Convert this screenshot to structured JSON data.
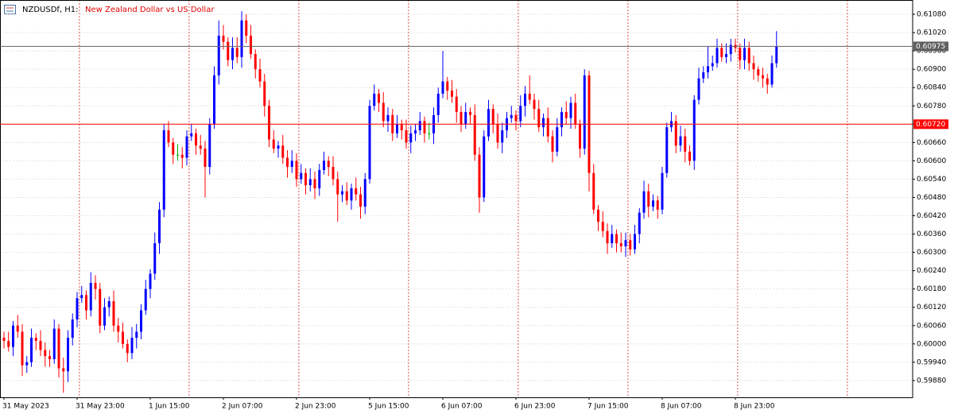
{
  "chart_data": {
    "type": "candlestick",
    "symbol": "NZDUSDf, H1:",
    "description": "New Zealand Dollar vs US Dollar",
    "up_color": "#0000ff",
    "down_color": "#ff0000",
    "doji_color": "#00b000",
    "grid": true,
    "ylim": [
      0.59825,
      0.61127
    ],
    "yticks": [
      {
        "value": 0.5988,
        "label": "0.59880"
      },
      {
        "value": 0.5994,
        "label": "0.59940"
      },
      {
        "value": 0.6,
        "label": "0.60000"
      },
      {
        "value": 0.6006,
        "label": "0.60060"
      },
      {
        "value": 0.6012,
        "label": "0.60120"
      },
      {
        "value": 0.6018,
        "label": "0.60180"
      },
      {
        "value": 0.6024,
        "label": "0.60240"
      },
      {
        "value": 0.603,
        "label": "0.60300"
      },
      {
        "value": 0.6036,
        "label": "0.60360"
      },
      {
        "value": 0.6042,
        "label": "0.60420"
      },
      {
        "value": 0.6048,
        "label": "0.60480"
      },
      {
        "value": 0.6054,
        "label": "0.60540"
      },
      {
        "value": 0.606,
        "label": "0.60600"
      },
      {
        "value": 0.6066,
        "label": "0.60660"
      },
      {
        "value": 0.6072,
        "label": "0.60720"
      },
      {
        "value": 0.6078,
        "label": "0.60780"
      },
      {
        "value": 0.6084,
        "label": "0.60840"
      },
      {
        "value": 0.609,
        "label": "0.60900"
      },
      {
        "value": 0.6096,
        "label": "0.60960"
      },
      {
        "value": 0.6102,
        "label": "0.61020"
      },
      {
        "value": 0.6108,
        "label": "0.61080"
      }
    ],
    "price_lines": [
      {
        "value": 0.60975,
        "label": "0.60975",
        "color": "#606060"
      },
      {
        "value": 0.6072,
        "label": "0.60720",
        "color": "#ff0000"
      }
    ],
    "categories": [
      "31 May 2023",
      null,
      null,
      null,
      null,
      null,
      null,
      null,
      null,
      null,
      null,
      null,
      null,
      null,
      null,
      null,
      "31 May 23:00",
      null,
      null,
      null,
      null,
      null,
      null,
      null,
      null,
      null,
      null,
      null,
      null,
      null,
      null,
      null,
      "1 Jun 15:00",
      null,
      null,
      null,
      null,
      null,
      null,
      null,
      null,
      null,
      null,
      null,
      null,
      null,
      null,
      null,
      "2 Jun 07:00",
      null,
      null,
      null,
      null,
      null,
      null,
      null,
      null,
      null,
      null,
      null,
      null,
      null,
      null,
      null,
      "2 Jun 23:00",
      null,
      null,
      null,
      null,
      null,
      null,
      null,
      null,
      null,
      null,
      null,
      null,
      null,
      null,
      null,
      "5 Jun 15:00",
      null,
      null,
      null,
      null,
      null,
      null,
      null,
      null,
      null,
      null,
      null,
      null,
      null,
      null,
      null,
      "6 Jun 07:00",
      null,
      null,
      null,
      null,
      null,
      null,
      null,
      null,
      null,
      null,
      null,
      null,
      null,
      null,
      null,
      "6 Jun 23:00",
      null,
      null,
      null,
      null,
      null,
      null,
      null,
      null,
      null,
      null,
      null,
      null,
      null,
      null,
      null,
      "7 Jun 15:00",
      null,
      null,
      null,
      null,
      null,
      null,
      null,
      null,
      null,
      null,
      null,
      null,
      null,
      null,
      null,
      "8 Jun 07:00",
      null,
      null,
      null,
      null,
      null,
      null,
      null,
      null,
      null,
      null,
      null,
      null,
      null,
      null,
      null,
      "8 Jun 23:00",
      null,
      null,
      null,
      null,
      null,
      null,
      null,
      null,
      null
    ],
    "open": [
      0.6002,
      0.6001,
      0.5999,
      0.6006,
      0.6004,
      0.5993,
      0.5994,
      0.6002,
      0.6001,
      0.5998,
      0.5996,
      0.5995,
      0.6005,
      0.5992,
      0.5991,
      0.6002,
      0.6008,
      0.6015,
      0.6016,
      0.6011,
      0.602,
      0.6018,
      0.6006,
      0.6012,
      0.6014,
      0.6006,
      0.6004,
      0.6,
      0.5997,
      0.6002,
      0.6004,
      0.6011,
      0.6018,
      0.6023,
      0.6033,
      0.6044,
      0.607,
      0.6066,
      0.6062,
      0.6062,
      0.6061,
      0.6068,
      0.6069,
      0.6065,
      0.6064,
      0.6058,
      0.6072,
      0.6088,
      0.6101,
      0.6099,
      0.6093,
      0.6097,
      0.6094,
      0.6106,
      0.6101,
      0.6095,
      0.609,
      0.6086,
      0.6078,
      0.6067,
      0.6064,
      0.6065,
      0.6061,
      0.6058,
      0.606,
      0.6054,
      0.6056,
      0.6052,
      0.6054,
      0.6051,
      0.6057,
      0.606,
      0.6058,
      0.6054,
      0.6049,
      0.605,
      0.6047,
      0.6051,
      0.6049,
      0.6045,
      0.6054,
      0.6078,
      0.6082,
      0.6079,
      0.6073,
      0.6075,
      0.6069,
      0.6072,
      0.607,
      0.6066,
      0.6069,
      0.607,
      0.6073,
      0.6069,
      0.6069,
      0.6075,
      0.6082,
      0.6086,
      0.6083,
      0.6081,
      0.6076,
      0.6072,
      0.6076,
      0.6075,
      0.6062,
      0.6048,
      0.6068,
      0.6077,
      0.6072,
      0.6066,
      0.607,
      0.6074,
      0.6075,
      0.6073,
      0.6078,
      0.6082,
      0.608,
      0.6077,
      0.6071,
      0.6074,
      0.6068,
      0.6063,
      0.6071,
      0.6076,
      0.6074,
      0.6079,
      0.6072,
      0.6064,
      0.6088,
      0.6056,
      0.6044,
      0.604,
      0.6037,
      0.6033,
      0.6036,
      0.6033,
      0.6032,
      0.6034,
      0.6031,
      0.6036,
      0.6043,
      0.605,
      0.6045,
      0.6047,
      0.6044,
      0.6056,
      0.6071,
      0.6073,
      0.6065,
      0.6068,
      0.6063,
      0.606,
      0.608,
      0.6087,
      0.6089,
      0.6091,
      0.6092,
      0.6097,
      0.6094,
      0.6095,
      0.6098,
      0.6097,
      0.6093,
      0.6097,
      0.6092,
      0.609,
      0.6088,
      0.6087,
      0.6085,
      0.6092
    ],
    "high": [
      0.6004,
      0.6004,
      0.60075,
      0.60095,
      0.60065,
      0.5996,
      0.6005,
      0.60035,
      0.60045,
      0.60005,
      0.5998,
      0.6008,
      0.60065,
      0.59955,
      0.60045,
      0.601,
      0.6017,
      0.6019,
      0.60175,
      0.60235,
      0.60225,
      0.602,
      0.6015,
      0.60155,
      0.60175,
      0.60085,
      0.6007,
      0.60015,
      0.60055,
      0.60065,
      0.6013,
      0.6021,
      0.60245,
      0.60365,
      0.60465,
      0.6072,
      0.6073,
      0.60675,
      0.60655,
      0.60645,
      0.607,
      0.6072,
      0.60705,
      0.60685,
      0.60665,
      0.6074,
      0.6091,
      0.6106,
      0.61045,
      0.61005,
      0.61005,
      0.61005,
      0.6109,
      0.6108,
      0.61045,
      0.60965,
      0.60935,
      0.60885,
      0.608,
      0.607,
      0.60665,
      0.60685,
      0.60635,
      0.60635,
      0.60625,
      0.6059,
      0.60575,
      0.60575,
      0.60565,
      0.6059,
      0.6063,
      0.60615,
      0.60615,
      0.60565,
      0.6052,
      0.6053,
      0.60525,
      0.60545,
      0.60515,
      0.6056,
      0.608,
      0.6085,
      0.60835,
      0.60825,
      0.60775,
      0.6077,
      0.6075,
      0.60735,
      0.60735,
      0.60715,
      0.6072,
      0.6076,
      0.60745,
      0.60725,
      0.60775,
      0.6084,
      0.6096,
      0.60875,
      0.60865,
      0.60835,
      0.6078,
      0.6079,
      0.60775,
      0.60785,
      0.60645,
      0.607,
      0.608,
      0.60785,
      0.60755,
      0.60725,
      0.6076,
      0.6078,
      0.60765,
      0.60815,
      0.60845,
      0.6088,
      0.6082,
      0.608,
      0.60755,
      0.60775,
      0.607,
      0.6074,
      0.60775,
      0.60795,
      0.6081,
      0.6082,
      0.60735,
      0.609,
      0.60895,
      0.6059,
      0.60455,
      0.60435,
      0.60395,
      0.6039,
      0.60375,
      0.60365,
      0.60365,
      0.6036,
      0.6039,
      0.60445,
      0.60535,
      0.60525,
      0.6049,
      0.60485,
      0.6058,
      0.60725,
      0.6076,
      0.6075,
      0.60715,
      0.60705,
      0.6065,
      0.60815,
      0.60905,
      0.6091,
      0.60975,
      0.60945,
      0.61,
      0.60985,
      0.60985,
      0.61,
      0.61,
      0.60985,
      0.61,
      0.6099,
      0.60945,
      0.6091,
      0.60905,
      0.60885,
      0.60945,
      0.61025
    ],
    "low": [
      0.59985,
      0.59975,
      0.5996,
      0.6002,
      0.59895,
      0.59905,
      0.59925,
      0.5998,
      0.5996,
      0.59925,
      0.59925,
      0.59935,
      0.5989,
      0.5984,
      0.59875,
      0.59995,
      0.60055,
      0.60135,
      0.6008,
      0.6009,
      0.60145,
      0.60035,
      0.60045,
      0.6009,
      0.6004,
      0.60005,
      0.59985,
      0.5994,
      0.5995,
      0.59985,
      0.60015,
      0.60095,
      0.6015,
      0.6021,
      0.60295,
      0.60415,
      0.60645,
      0.6059,
      0.606,
      0.60575,
      0.60585,
      0.60665,
      0.6062,
      0.6062,
      0.6048,
      0.60555,
      0.60705,
      0.6085,
      0.60965,
      0.6091,
      0.609,
      0.6092,
      0.60905,
      0.60985,
      0.60935,
      0.6087,
      0.6084,
      0.60745,
      0.60645,
      0.60625,
      0.6061,
      0.6059,
      0.60545,
      0.6056,
      0.60515,
      0.60525,
      0.6049,
      0.605,
      0.60475,
      0.60485,
      0.60555,
      0.6055,
      0.6052,
      0.604,
      0.60465,
      0.60455,
      0.6044,
      0.6047,
      0.6041,
      0.60425,
      0.60525,
      0.60765,
      0.6076,
      0.6071,
      0.60695,
      0.60665,
      0.60675,
      0.6067,
      0.6064,
      0.60625,
      0.60665,
      0.60685,
      0.6066,
      0.6067,
      0.60655,
      0.60725,
      0.60805,
      0.608,
      0.6079,
      0.60725,
      0.60695,
      0.60705,
      0.6072,
      0.606,
      0.6043,
      0.60465,
      0.60665,
      0.6069,
      0.6064,
      0.60625,
      0.60675,
      0.60725,
      0.607,
      0.6071,
      0.60745,
      0.60785,
      0.60735,
      0.60695,
      0.6068,
      0.6066,
      0.60595,
      0.60615,
      0.6068,
      0.6072,
      0.60705,
      0.60705,
      0.6061,
      0.6062,
      0.605,
      0.60425,
      0.6037,
      0.6035,
      0.60295,
      0.60315,
      0.603,
      0.603,
      0.60285,
      0.6029,
      0.60295,
      0.6033,
      0.6041,
      0.60415,
      0.60435,
      0.6041,
      0.60425,
      0.60545,
      0.60695,
      0.60625,
      0.6063,
      0.60595,
      0.60585,
      0.6057,
      0.60785,
      0.60855,
      0.6087,
      0.60895,
      0.60905,
      0.60925,
      0.6092,
      0.60925,
      0.60955,
      0.609,
      0.609,
      0.60895,
      0.60865,
      0.6086,
      0.6084,
      0.6082,
      0.6084,
      0.60905
    ],
    "close": [
      0.6001,
      0.5999,
      0.6006,
      0.6004,
      0.5993,
      0.5994,
      0.6002,
      0.6001,
      0.5998,
      0.5996,
      0.5995,
      0.6005,
      0.5992,
      0.5991,
      0.6002,
      0.6008,
      0.6015,
      0.6016,
      0.6011,
      0.602,
      0.6018,
      0.6006,
      0.6012,
      0.6014,
      0.6006,
      0.6004,
      0.6,
      0.5997,
      0.6002,
      0.6004,
      0.6011,
      0.6018,
      0.6023,
      0.6033,
      0.6044,
      0.607,
      0.6066,
      0.6062,
      0.6062,
      0.6061,
      0.6068,
      0.6069,
      0.6065,
      0.6064,
      0.6058,
      0.6072,
      0.6088,
      0.6101,
      0.6099,
      0.6093,
      0.6097,
      0.6094,
      0.6106,
      0.6101,
      0.6095,
      0.609,
      0.6086,
      0.6078,
      0.6067,
      0.6064,
      0.6065,
      0.6061,
      0.6058,
      0.606,
      0.6054,
      0.6056,
      0.6052,
      0.6054,
      0.6051,
      0.6057,
      0.606,
      0.6058,
      0.6054,
      0.6049,
      0.605,
      0.6047,
      0.6051,
      0.6049,
      0.6045,
      0.6054,
      0.6078,
      0.6082,
      0.6079,
      0.6073,
      0.6075,
      0.6069,
      0.6072,
      0.607,
      0.6066,
      0.6069,
      0.607,
      0.6073,
      0.6069,
      0.6069,
      0.6075,
      0.6082,
      0.6086,
      0.6083,
      0.6081,
      0.6076,
      0.6072,
      0.6076,
      0.6075,
      0.6062,
      0.6048,
      0.6068,
      0.6077,
      0.6072,
      0.6066,
      0.607,
      0.6074,
      0.6075,
      0.6073,
      0.6078,
      0.6082,
      0.608,
      0.6077,
      0.6071,
      0.6074,
      0.6068,
      0.6063,
      0.6071,
      0.6076,
      0.6074,
      0.6079,
      0.6072,
      0.6064,
      0.6088,
      0.6056,
      0.6044,
      0.604,
      0.6037,
      0.6033,
      0.6036,
      0.6033,
      0.6032,
      0.6034,
      0.6031,
      0.6036,
      0.6043,
      0.605,
      0.6045,
      0.6047,
      0.6044,
      0.6056,
      0.6071,
      0.6073,
      0.6065,
      0.6068,
      0.6063,
      0.606,
      0.608,
      0.6087,
      0.6089,
      0.6091,
      0.6092,
      0.6097,
      0.6094,
      0.6095,
      0.6098,
      0.6097,
      0.6093,
      0.6097,
      0.6092,
      0.609,
      0.6088,
      0.6087,
      0.6085,
      0.6092,
      0.60975
    ]
  }
}
